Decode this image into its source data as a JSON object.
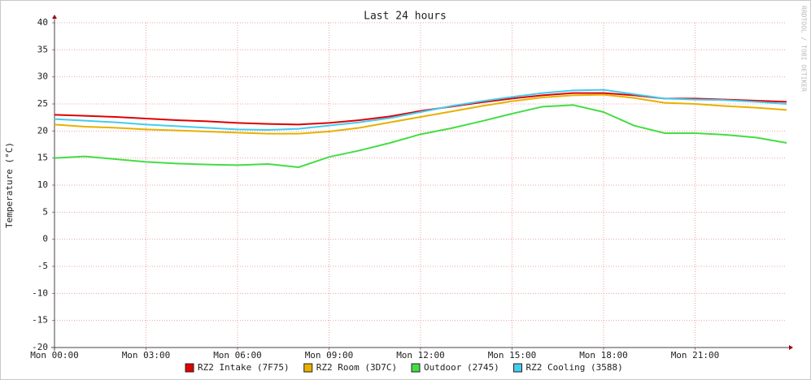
{
  "chart_data": {
    "type": "line",
    "title": "Last 24 hours",
    "y_label": "Temperature (°C)",
    "watermark": "RRDTOOL / TOBI OETIKER",
    "x": [
      0,
      1,
      2,
      3,
      4,
      5,
      6,
      7,
      8,
      9,
      10,
      11,
      12,
      13,
      14,
      15,
      16,
      17,
      18,
      19,
      20,
      21,
      22,
      23,
      24
    ],
    "xlim": [
      0,
      24
    ],
    "xticks": [
      {
        "value": 0,
        "label": "Mon 00:00"
      },
      {
        "value": 3,
        "label": "Mon 03:00"
      },
      {
        "value": 6,
        "label": "Mon 06:00"
      },
      {
        "value": 9,
        "label": "Mon 09:00"
      },
      {
        "value": 12,
        "label": "Mon 12:00"
      },
      {
        "value": 15,
        "label": "Mon 15:00"
      },
      {
        "value": 18,
        "label": "Mon 18:00"
      },
      {
        "value": 21,
        "label": "Mon 21:00"
      }
    ],
    "ylim": [
      -20,
      40
    ],
    "yticks": [
      -20,
      -15,
      -10,
      -5,
      0,
      5,
      10,
      15,
      20,
      25,
      30,
      35,
      40
    ],
    "grid": true,
    "legend": "bottom",
    "series": [
      {
        "name": "RZ2 Intake (7F75)",
        "color": "#e00000",
        "values": [
          23,
          22.8,
          22.6,
          22.3,
          22,
          21.8,
          21.5,
          21.3,
          21.2,
          21.5,
          22,
          22.7,
          23.7,
          24.5,
          25.3,
          26,
          26.6,
          27,
          27,
          26.6,
          26,
          26,
          25.8,
          25.6,
          25.4
        ]
      },
      {
        "name": "RZ2 Room (3D7C)",
        "color": "#e8b000",
        "values": [
          21.2,
          20.8,
          20.6,
          20.3,
          20.1,
          19.9,
          19.7,
          19.5,
          19.5,
          19.9,
          20.6,
          21.6,
          22.6,
          23.6,
          24.6,
          25.5,
          26.2,
          26.6,
          26.7,
          26.1,
          25.2,
          25,
          24.6,
          24.3,
          23.9
        ]
      },
      {
        "name": "Outdoor (2745)",
        "color": "#44dd44",
        "values": [
          15,
          15.3,
          14.8,
          14.3,
          14,
          13.8,
          13.7,
          13.9,
          13.3,
          15.2,
          16.4,
          17.8,
          19.4,
          20.5,
          21.8,
          23.2,
          24.5,
          24.8,
          23.5,
          21,
          19.6,
          19.6,
          19.3,
          18.8,
          17.8
        ]
      },
      {
        "name": "RZ2 Cooling (3588)",
        "color": "#44ccee",
        "values": [
          22.2,
          21.9,
          21.6,
          21.2,
          20.9,
          20.6,
          20.3,
          20.2,
          20.4,
          21,
          21.6,
          22.4,
          23.5,
          24.6,
          25.5,
          26.3,
          27,
          27.5,
          27.6,
          26.8,
          26,
          25.8,
          25.7,
          25.4,
          25
        ]
      }
    ]
  }
}
